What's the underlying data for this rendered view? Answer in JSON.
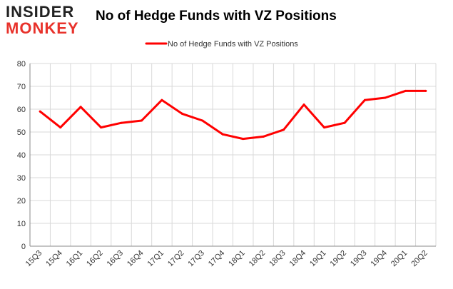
{
  "logo": {
    "line1": "INSIDER",
    "line2": "MONKEY"
  },
  "colors": {
    "series": "#ff0000",
    "grid": "#d9d9d9",
    "axis": "#888888",
    "logo_accent": "#e8322b"
  },
  "chart_data": {
    "type": "line",
    "title": "No of Hedge Funds with VZ Positions",
    "categories": [
      "15Q3",
      "15Q4",
      "16Q1",
      "16Q2",
      "16Q3",
      "16Q4",
      "17Q1",
      "17Q2",
      "17Q3",
      "17Q4",
      "18Q1",
      "18Q2",
      "18Q3",
      "18Q4",
      "19Q1",
      "19Q2",
      "19Q3",
      "19Q4",
      "20Q1",
      "20Q2"
    ],
    "series": [
      {
        "name": "No of Hedge Funds with VZ Positions",
        "values": [
          59,
          52,
          61,
          52,
          54,
          55,
          64,
          58,
          55,
          49,
          47,
          48,
          51,
          62,
          52,
          54,
          64,
          65,
          68,
          68
        ]
      }
    ],
    "yticks": [
      0,
      10,
      20,
      30,
      40,
      50,
      60,
      70,
      80
    ],
    "ylim": [
      0,
      80
    ],
    "grid": true,
    "legend": "top-center"
  }
}
